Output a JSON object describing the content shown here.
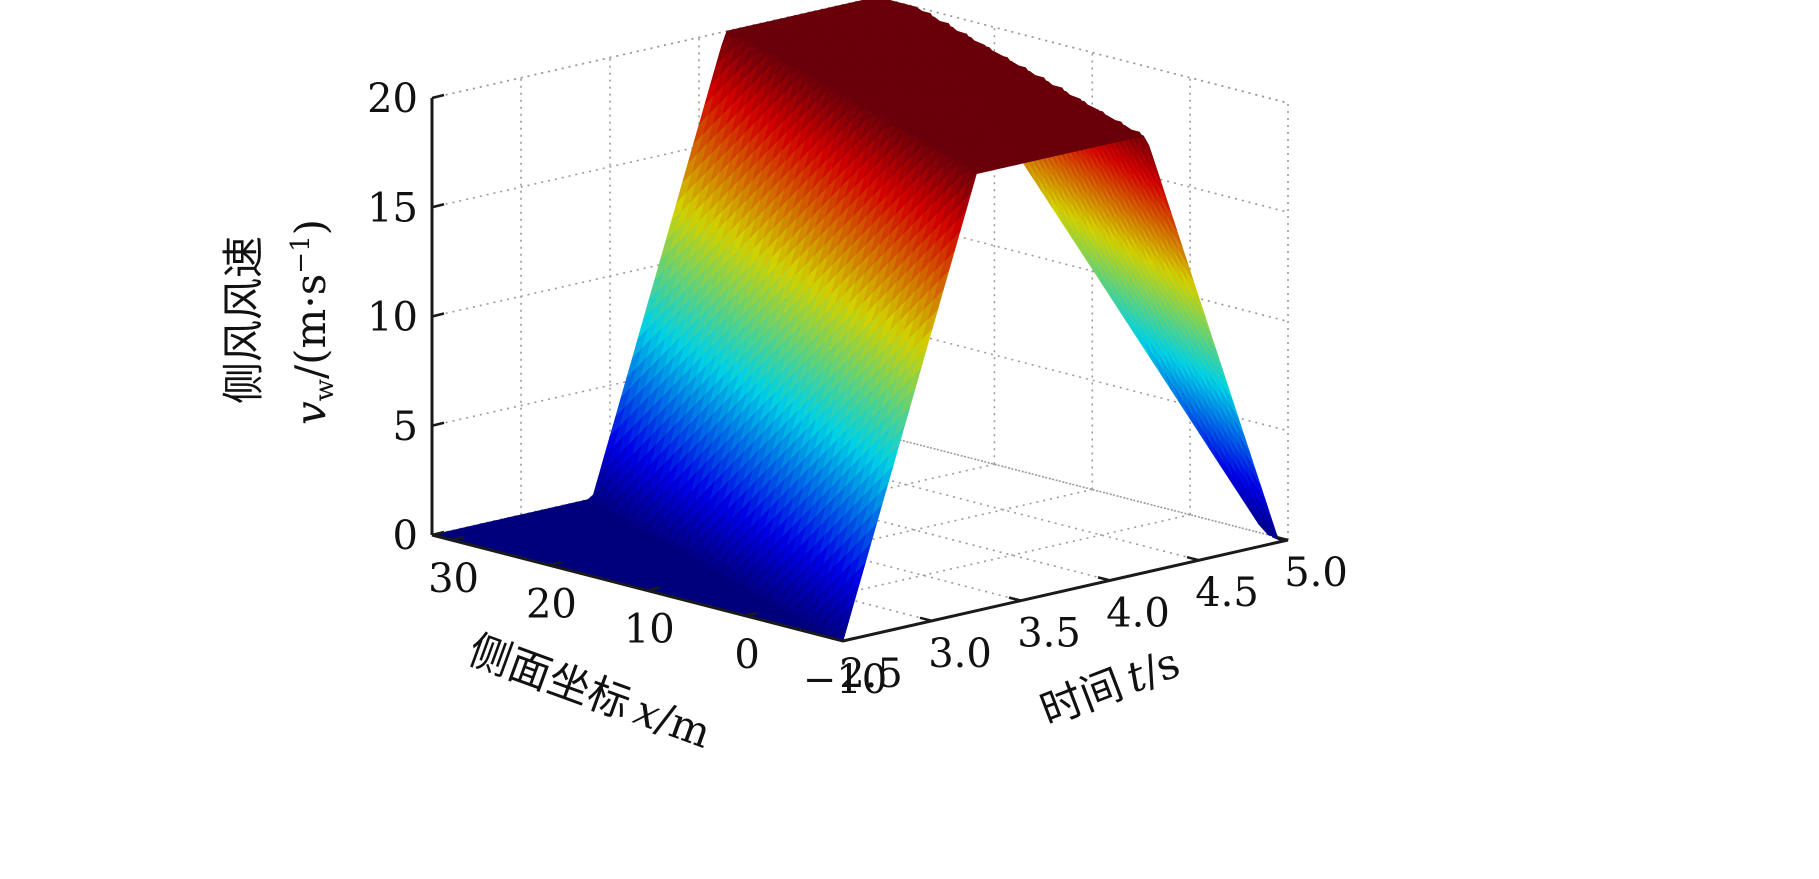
{
  "chart_data": {
    "type": "surface",
    "zlabel_cn": "侧风风速",
    "zlabel_symbol": "v",
    "zlabel_subscript": "w",
    "zlabel_unit": "/(m·s",
    "zlabel_exp": "−1",
    "zlabel_close": ")",
    "xlabel_cn": "侧面坐标",
    "xlabel_var": "x",
    "xlabel_unit": "/m",
    "tlabel_cn": "时间",
    "tlabel_var": "t",
    "tlabel_unit": "/s",
    "x_ticks": [
      "30",
      "20",
      "10",
      "0",
      "−10"
    ],
    "x_values": [
      30,
      20,
      10,
      0,
      -10
    ],
    "t_ticks": [
      "2.5",
      "3.0",
      "3.5",
      "4.0",
      "4.5",
      "5.0"
    ],
    "t_values": [
      2.5,
      3.0,
      3.5,
      4.0,
      4.5,
      5.0
    ],
    "z_ticks": [
      "0",
      "5",
      "10",
      "15",
      "20"
    ],
    "z_values": [
      0,
      5,
      10,
      15,
      20
    ],
    "xlim": [
      -10,
      32
    ],
    "tlim": [
      2.5,
      5.0
    ],
    "zlim": [
      0,
      20
    ],
    "grid": true,
    "colormap": "jet",
    "surface": {
      "base_speed": 0,
      "peak_speed": 20,
      "gust_start_time_at_x_min": 2.5,
      "gust_start_time_at_x_max": 3.4,
      "gust_rise_duration": 0.75,
      "gust_plateau_duration": 0.95,
      "gust_fall_duration": 0.75
    }
  }
}
